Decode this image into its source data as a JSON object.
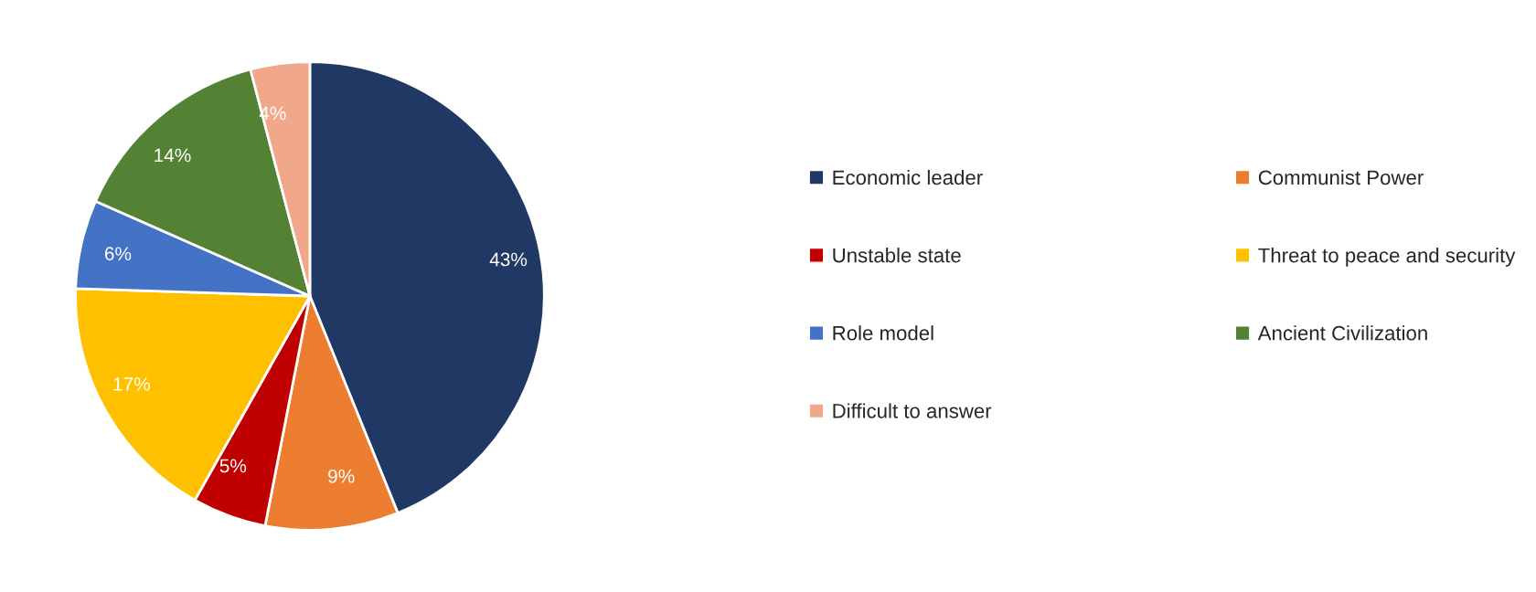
{
  "chart_data": {
    "type": "pie",
    "categories": [
      "Economic leader",
      "Communist Power",
      "Unstable state",
      "Threat to peace and security",
      "Role model",
      "Ancient Civilization",
      "Difficult to answer"
    ],
    "values": [
      43,
      9,
      5,
      17,
      6,
      14,
      4
    ],
    "colors": [
      "#203864",
      "#ed7d31",
      "#c00000",
      "#ffc000",
      "#4472c4",
      "#548235",
      "#f1a88a"
    ],
    "value_labels": [
      "43%",
      "9%",
      "5%",
      "17%",
      "6%",
      "14%",
      "4%"
    ],
    "legend": "right"
  }
}
